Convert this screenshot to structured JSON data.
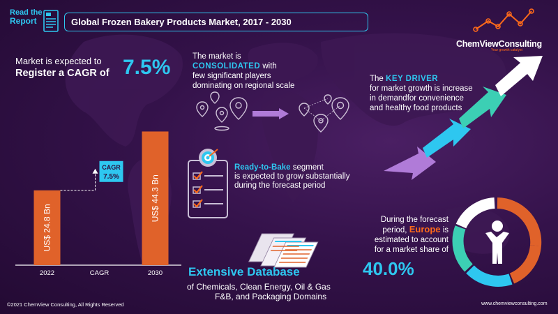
{
  "header": {
    "read_line1": "Read the",
    "read_line2": "Report",
    "title": "Global Frozen Bakery Products Market, 2017 - 2030"
  },
  "brand": {
    "name": "ChemViewConsulting",
    "tagline": "Your growth catalyst"
  },
  "cagr_block": {
    "line1": "Market is expected to",
    "line2": "Register a CAGR of",
    "value": "7.5%"
  },
  "chart_data": {
    "type": "bar",
    "categories": [
      "2022",
      "CAGR",
      "2030"
    ],
    "series": [
      {
        "values": [
          24.8,
          null,
          44.3
        ]
      }
    ],
    "data_labels": [
      "US$ 24.8 Bn",
      "US$ 44.3 Bn"
    ],
    "annotation": {
      "label": "CAGR",
      "value": "7.5%"
    },
    "ylim": [
      0,
      50
    ],
    "grid": false,
    "colors": {
      "bar": "#e0622a",
      "annotation": "#2ec7f0",
      "axis": "#ffffff"
    }
  },
  "consolidated": {
    "line1": "The market is",
    "keyword": "CONSOLIDATED",
    "line2_suffix": " with",
    "line3": "few significant players",
    "line4": "dominating on regional scale"
  },
  "ready_to_bake": {
    "keyword": "Ready-to-Bake",
    "line1_suffix": " segment",
    "line2": "is expected to grow substantially",
    "line3": "during the forecast period"
  },
  "driver": {
    "prefix": "The ",
    "keyword": "KEY DRIVER",
    "line2": "for market growth is increase",
    "line3": "in demandfor convenience",
    "line4": "and healthy food products"
  },
  "europe": {
    "line1": "During the forecast",
    "line2_prefix": "period, ",
    "keyword": "Europe",
    "line2_suffix": " is",
    "line3": "estimated to account",
    "line4": "for a market share of",
    "value": "40.0%"
  },
  "database": {
    "title": "Extensive Database",
    "line1": "of Chemicals, Clean Energy, Oil & Gas",
    "line2": "F&B, and Packaging Domains"
  },
  "footer": {
    "copyright": "©2021 ChemView Consulting,  All Rights Reserved",
    "website": "www.chemviewconsulting.com"
  },
  "icons": [
    "document-icon",
    "location-pin-icon",
    "arrow-right-icon",
    "checklist-icon",
    "target-icon",
    "growth-arrow-icon",
    "person-icon",
    "database-sheets-icon",
    "logo-chart-icon"
  ],
  "colors": {
    "accent": "#2ec7f0",
    "highlight": "#ff6a1a",
    "bar": "#e0622a",
    "background": "#2b0f3d"
  }
}
